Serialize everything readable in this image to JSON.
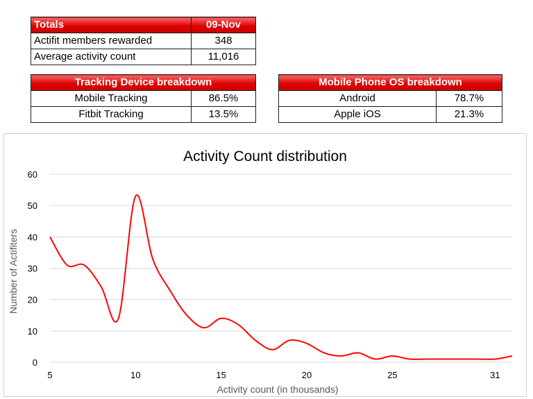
{
  "totals": {
    "header_label": "Totals",
    "header_date": "09-Nov",
    "rows": [
      {
        "label": "Actifit members rewarded",
        "value": "348"
      },
      {
        "label": "Average activity count",
        "value": "11,016"
      }
    ]
  },
  "tracking": {
    "header": "Tracking Device breakdown",
    "rows": [
      {
        "label": "Mobile Tracking",
        "value": "86.5%"
      },
      {
        "label": "Fitbit Tracking",
        "value": "13.5%"
      }
    ]
  },
  "mobile_os": {
    "header": "Mobile Phone OS breakdown",
    "rows": [
      {
        "label": "Android",
        "value": "78.7%"
      },
      {
        "label": "Apple iOS",
        "value": "21.3%"
      }
    ]
  },
  "chart_data": {
    "type": "line",
    "title": "Activity Count distribution",
    "xlabel": "Activity count (in thousands)",
    "ylabel": "Number of Actifiters",
    "xlim": [
      5,
      32
    ],
    "ylim": [
      0,
      60
    ],
    "x_ticks": [
      "5",
      "10",
      "15",
      "20",
      "25",
      "31"
    ],
    "x_tick_values": [
      5,
      10,
      15,
      20,
      25,
      31
    ],
    "y_ticks": [
      0,
      10,
      20,
      30,
      40,
      50,
      60
    ],
    "grid": true,
    "line_color": "#ff0000",
    "series": [
      {
        "x": [
          5,
          6,
          7,
          8,
          9,
          10,
          11,
          12,
          13,
          14,
          15,
          16,
          17,
          18,
          19,
          20,
          21,
          22,
          23,
          24,
          25,
          26,
          27,
          28,
          29,
          30,
          31,
          32
        ],
        "y": [
          40,
          31,
          31,
          24,
          14,
          53,
          33,
          23,
          15,
          11,
          14,
          12,
          7,
          4,
          7,
          6,
          3,
          2,
          3,
          1,
          2,
          1,
          1,
          1,
          1,
          1,
          1,
          2
        ]
      }
    ]
  }
}
